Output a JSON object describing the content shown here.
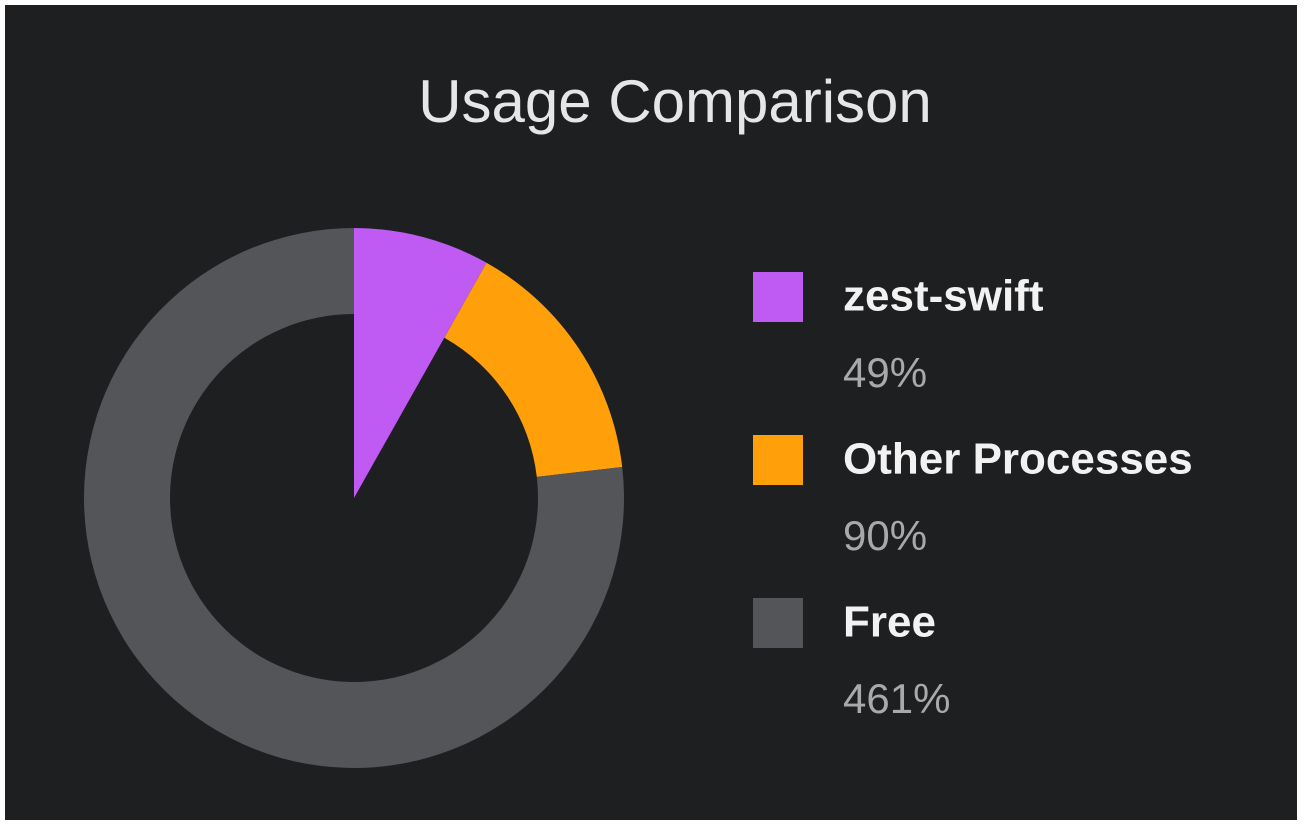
{
  "chart_data": {
    "type": "donut",
    "title": "Usage Comparison",
    "categories": [
      "zest-swift",
      "Other Processes",
      "Free"
    ],
    "values": [
      49,
      90,
      461
    ],
    "value_labels": [
      "49%",
      "90%",
      "461%"
    ],
    "colors": [
      "#bf5af2",
      "#ff9f0a",
      "#545559"
    ]
  }
}
